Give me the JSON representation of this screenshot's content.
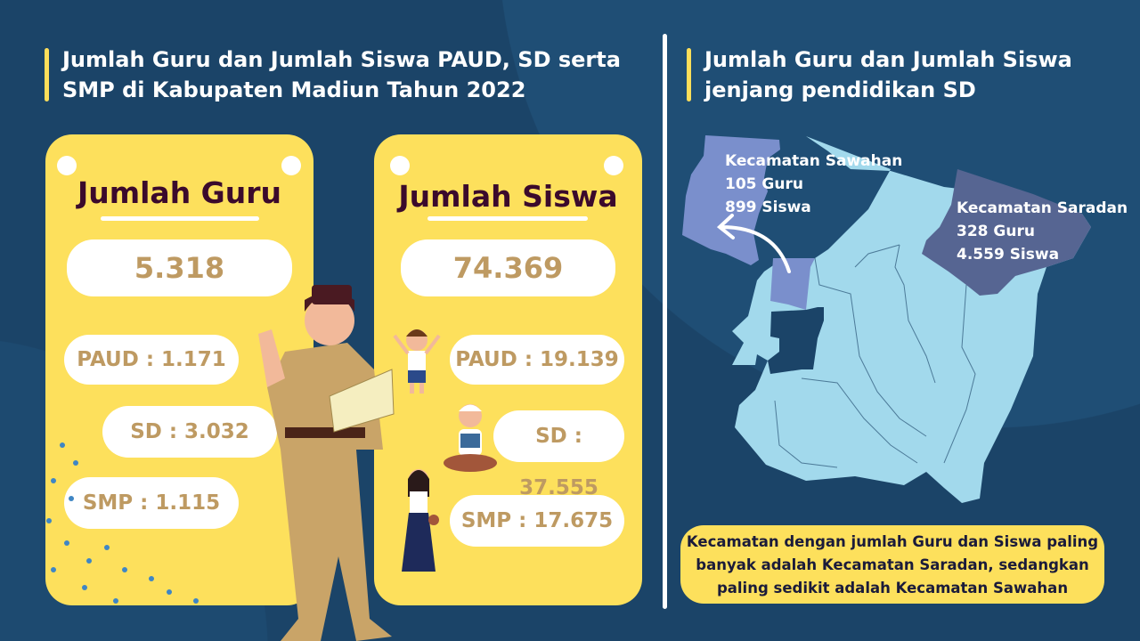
{
  "left": {
    "title_line1": "Jumlah Guru dan Jumlah Siswa PAUD, SD serta",
    "title_line2": "SMP di Kabupaten Madiun Tahun 2022",
    "guru": {
      "heading": "Jumlah Guru",
      "total": "5.318",
      "paud": "PAUD : 1.171",
      "sd": "SD : 3.032",
      "smp": "SMP : 1.115"
    },
    "siswa": {
      "heading": "Jumlah Siswa",
      "total": "74.369",
      "paud": "PAUD : 19.139",
      "sd": "SD : 37.555",
      "smp": "SMP : 17.675"
    }
  },
  "right": {
    "title_line1": "Jumlah Guru dan Jumlah Siswa",
    "title_line2": "jenjang pendidikan SD",
    "sawahan": {
      "name": "Kecamatan Sawahan",
      "guru": "105 Guru",
      "siswa": "899 Siswa"
    },
    "saradan": {
      "name": "Kecamatan Saradan",
      "guru": "328 Guru",
      "siswa": "4.559 Siswa"
    },
    "note_line1": "Kecamatan dengan jumlah Guru dan Siswa paling",
    "note_line2": "banyak adalah Kecamatan Saradan, sedangkan",
    "note_line3": "paling sedikit adalah Kecamatan Sawahan"
  },
  "colors": {
    "background": "#1b4468",
    "card": "#fde05c",
    "map": "#a2d9ec",
    "sawahan": "#7a8fcc",
    "saradan": "#566592",
    "number": "#be9a62"
  }
}
